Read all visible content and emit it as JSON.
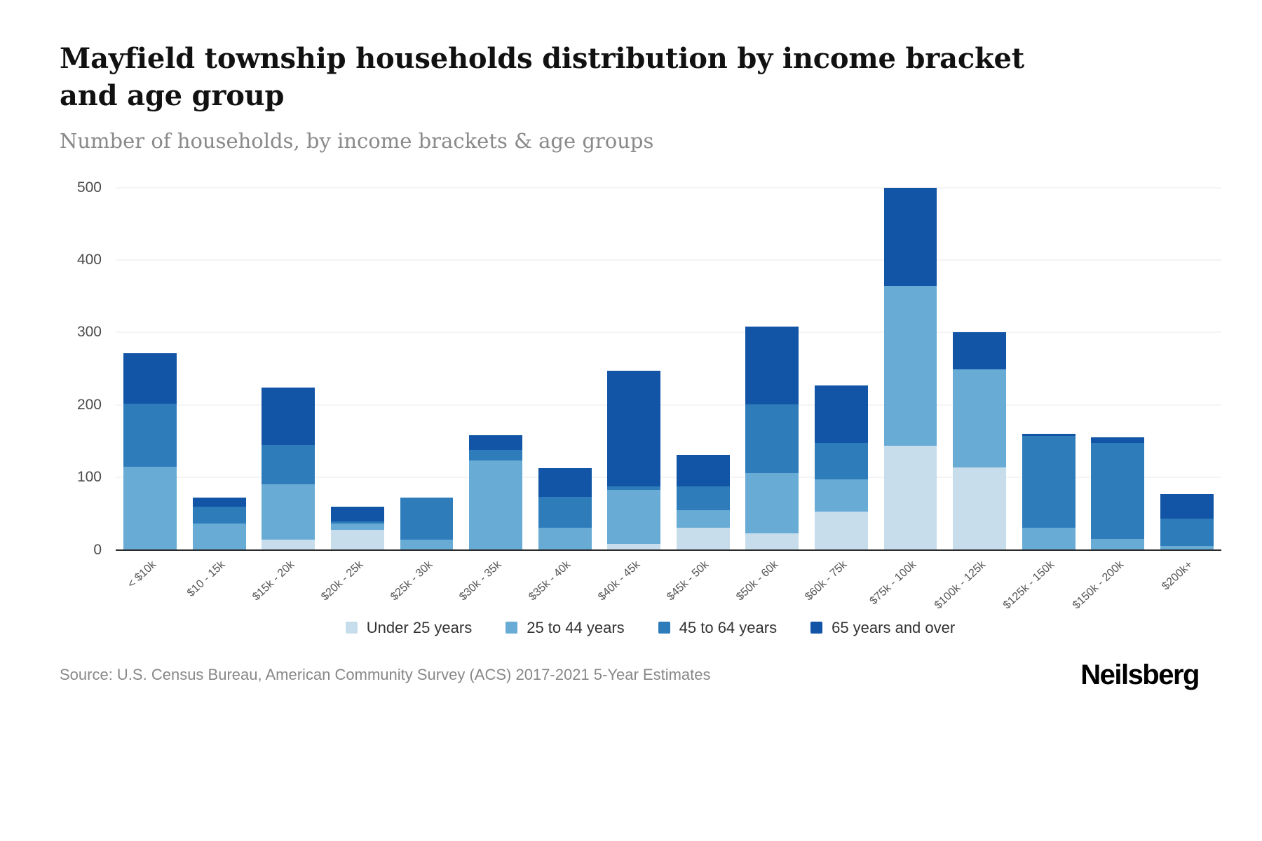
{
  "header": {
    "title": "Mayfield township households distribution by income bracket and age group",
    "subtitle": "Number of households, by income brackets & age groups"
  },
  "footer": {
    "source": "Source: U.S. Census Bureau, American Community Survey (ACS) 2017-2021 5-Year Estimates",
    "logo": "Neilsberg"
  },
  "chart_data": {
    "type": "bar",
    "stacked": true,
    "title": "Mayfield township households distribution by income bracket and age group",
    "xlabel": "",
    "ylabel": "Number of households",
    "ylim": [
      0,
      500
    ],
    "yticks": [
      0,
      100,
      200,
      300,
      400,
      500
    ],
    "grid": true,
    "legend_position": "bottom",
    "categories": [
      "< $10k",
      "$10 - 15k",
      "$15k - 20k",
      "$20k - 25k",
      "$25k - 30k",
      "$30k - 35k",
      "$35k - 40k",
      "$40k - 45k",
      "$45k - 50k",
      "$50k - 60k",
      "$60k - 75k",
      "$75k - 100k",
      "$100k - 125k",
      "$125k - 150k",
      "$150k - 200k",
      "$200k+"
    ],
    "series": [
      {
        "name": "Under 25 years",
        "color": "#c8ddeb",
        "values": [
          0,
          0,
          14,
          28,
          0,
          0,
          0,
          8,
          31,
          23,
          53,
          145,
          114,
          0,
          0,
          0
        ]
      },
      {
        "name": "25 to 44 years",
        "color": "#68abd5",
        "values": [
          115,
          36,
          77,
          8,
          14,
          123,
          31,
          75,
          24,
          83,
          44,
          222,
          135,
          31,
          15,
          5
        ]
      },
      {
        "name": "45 to 64 years",
        "color": "#2e7cba",
        "values": [
          87,
          24,
          54,
          3,
          58,
          15,
          42,
          5,
          33,
          95,
          51,
          0,
          0,
          126,
          133,
          38
        ]
      },
      {
        "name": "65 years and over",
        "color": "#1254a6",
        "values": [
          69,
          12,
          79,
          21,
          0,
          20,
          40,
          159,
          43,
          107,
          79,
          137,
          51,
          3,
          7,
          34
        ]
      }
    ]
  }
}
